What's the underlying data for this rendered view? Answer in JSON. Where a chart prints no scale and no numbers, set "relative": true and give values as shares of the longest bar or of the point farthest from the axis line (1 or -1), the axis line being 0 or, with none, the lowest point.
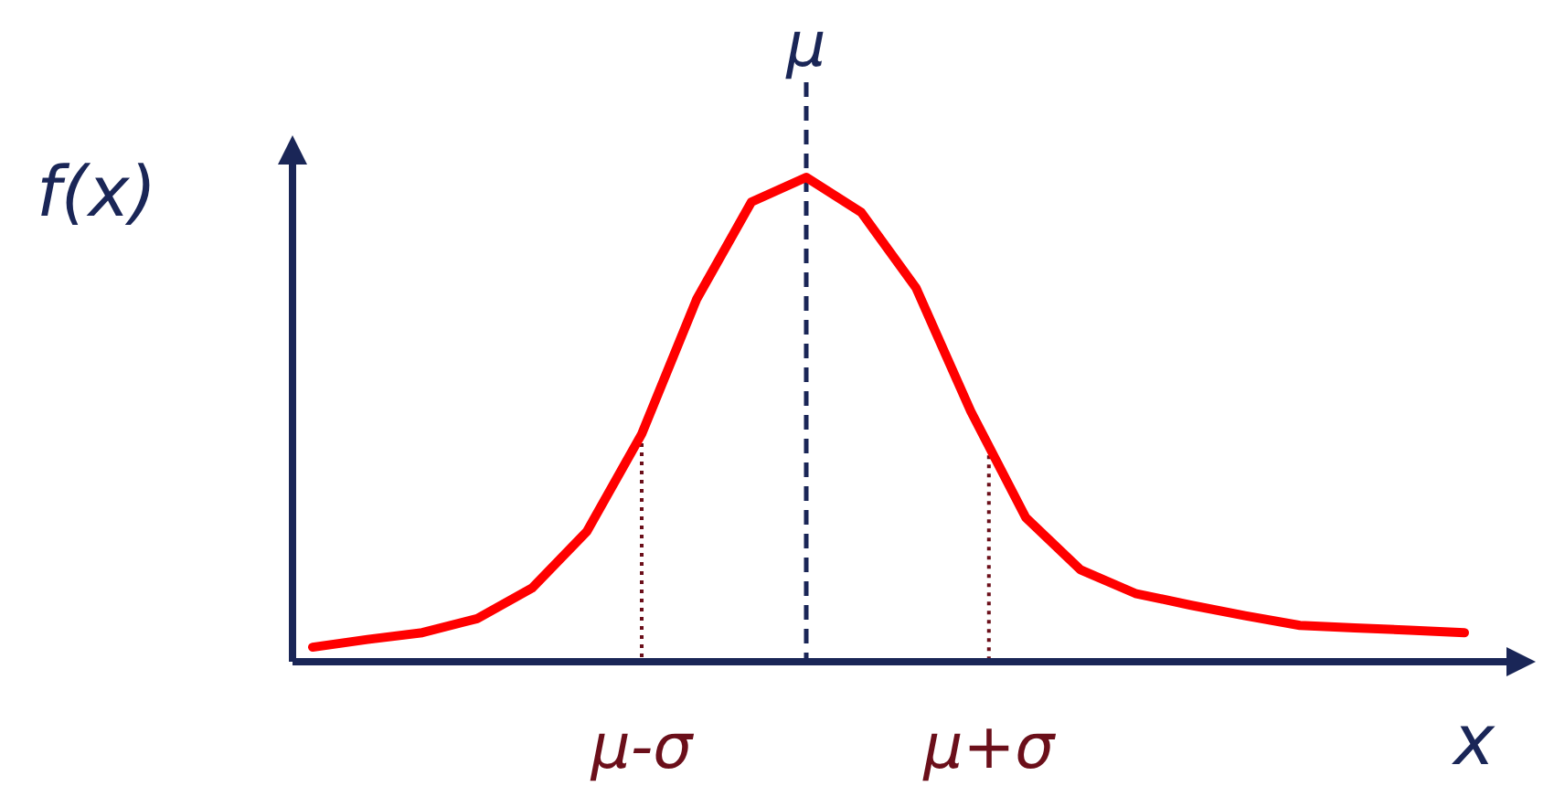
{
  "chart_data": {
    "type": "line",
    "relative": true,
    "xlabel": "x",
    "ylabel": "f(x)",
    "tick_labels": false,
    "grid": false,
    "legend": false,
    "marker": "none",
    "line_style": "solid",
    "categories": [
      null,
      null,
      null,
      null,
      null,
      null,
      null,
      null,
      null,
      null,
      null,
      null,
      null,
      null,
      null,
      null,
      null,
      null,
      null,
      null,
      null,
      null
    ],
    "series": [
      {
        "color": "#ff0000",
        "values": [
          0.03,
          0.046,
          0.06,
          0.089,
          0.152,
          0.269,
          0.47,
          0.748,
          0.949,
          1,
          0.928,
          0.772,
          0.517,
          0.298,
          0.19,
          0.141,
          0.117,
          0.095,
          0.075,
          0.07,
          0.065,
          0.06
        ]
      }
    ],
    "annotations": [
      "μ",
      "μ-σ",
      "μ+σ"
    ]
  }
}
